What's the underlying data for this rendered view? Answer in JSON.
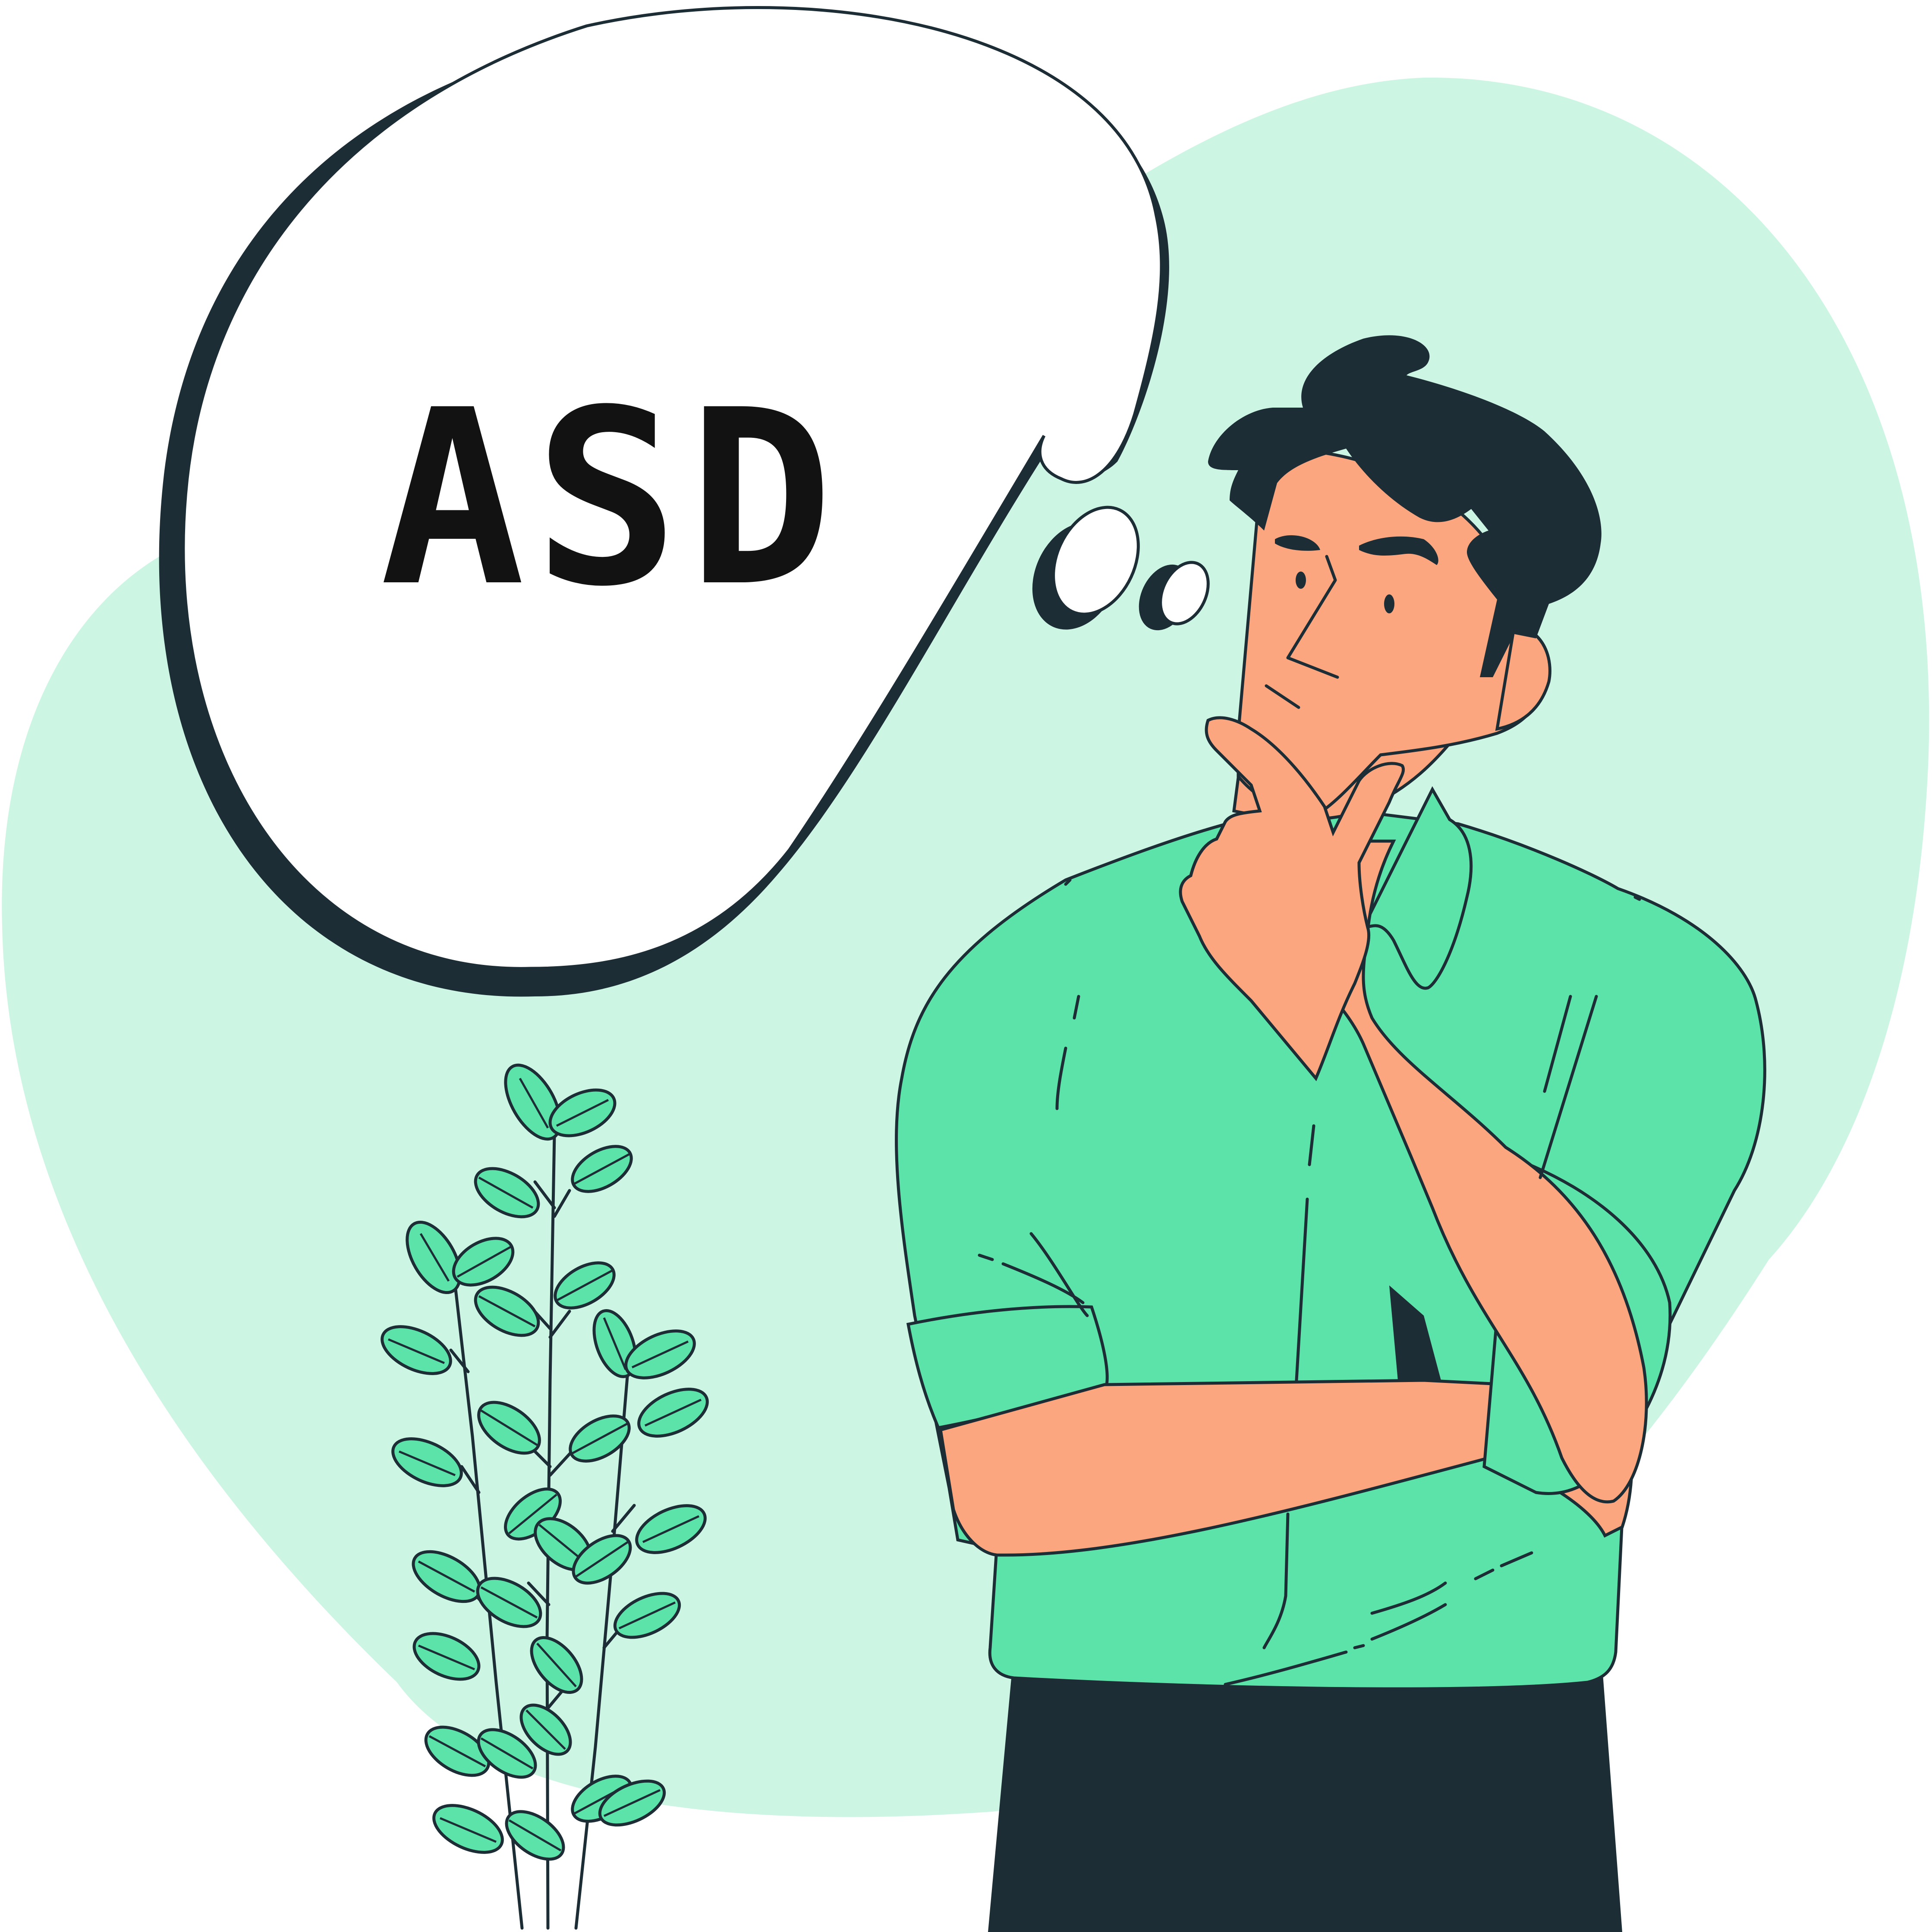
{
  "illustration": {
    "bubble_text": "ASD",
    "colors": {
      "background_blob": "#cdf5e4",
      "shirt": "#5ce3a9",
      "skin": "#fba67f",
      "hair_and_pants": "#1d2d35",
      "outline": "#1d2d35",
      "bubble_fill": "#ffffff",
      "text": "#121212"
    },
    "icons": [
      "thought-bubble",
      "thinking-person",
      "plant"
    ]
  }
}
